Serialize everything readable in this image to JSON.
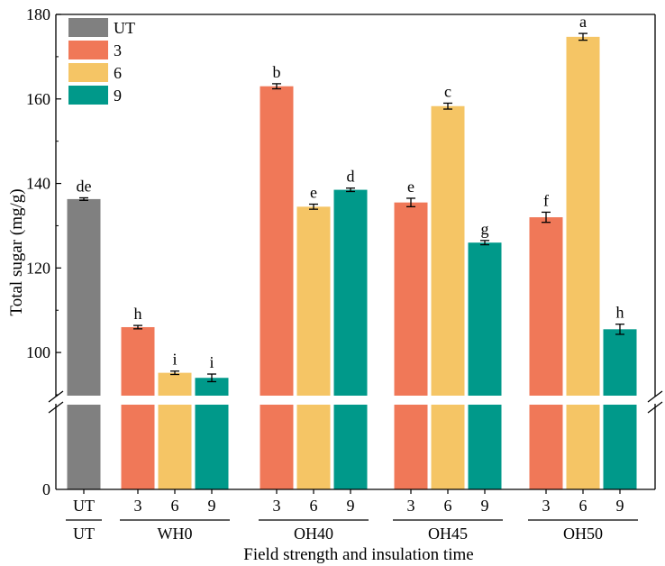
{
  "chart_data": {
    "type": "bar",
    "ylabel": "Total sugar (mg/g)",
    "xlabel": "Field strength and insulation time",
    "yticks_upper": [
      100,
      120,
      140,
      160,
      180
    ],
    "yticks_lower": [
      0
    ],
    "upper_range": [
      90,
      180
    ],
    "axis_break": true,
    "legend": {
      "placement": "top-left",
      "entries": [
        {
          "name": "UT",
          "color": "#808080"
        },
        {
          "name": "3",
          "color": "#F07858"
        },
        {
          "name": "6",
          "color": "#F5C565"
        },
        {
          "name": "9",
          "color": "#00998A"
        }
      ]
    },
    "groups": [
      {
        "label": "UT",
        "bars": [
          {
            "category": "UT",
            "series": "UT",
            "value": 136.3,
            "error": 0.3,
            "letter": "de"
          }
        ]
      },
      {
        "label": "WH0",
        "bars": [
          {
            "category": "3",
            "series": "3",
            "value": 106.0,
            "error": 0.4,
            "letter": "h"
          },
          {
            "category": "6",
            "series": "6",
            "value": 95.2,
            "error": 0.4,
            "letter": "i"
          },
          {
            "category": "9",
            "series": "9",
            "value": 94.0,
            "error": 0.9,
            "letter": "i"
          }
        ]
      },
      {
        "label": "OH40",
        "bars": [
          {
            "category": "3",
            "series": "3",
            "value": 163.0,
            "error": 0.6,
            "letter": "b"
          },
          {
            "category": "6",
            "series": "6",
            "value": 134.5,
            "error": 0.6,
            "letter": "e"
          },
          {
            "category": "9",
            "series": "9",
            "value": 138.5,
            "error": 0.4,
            "letter": "d"
          }
        ]
      },
      {
        "label": "OH45",
        "bars": [
          {
            "category": "3",
            "series": "3",
            "value": 135.5,
            "error": 1.0,
            "letter": "e"
          },
          {
            "category": "6",
            "series": "6",
            "value": 158.3,
            "error": 0.7,
            "letter": "c"
          },
          {
            "category": "9",
            "series": "9",
            "value": 126.0,
            "error": 0.5,
            "letter": "g"
          }
        ]
      },
      {
        "label": "OH50",
        "bars": [
          {
            "category": "3",
            "series": "3",
            "value": 132.0,
            "error": 1.2,
            "letter": "f"
          },
          {
            "category": "6",
            "series": "6",
            "value": 174.7,
            "error": 0.8,
            "letter": "a"
          },
          {
            "category": "9",
            "series": "9",
            "value": 105.5,
            "error": 1.2,
            "letter": "h"
          }
        ]
      }
    ]
  }
}
